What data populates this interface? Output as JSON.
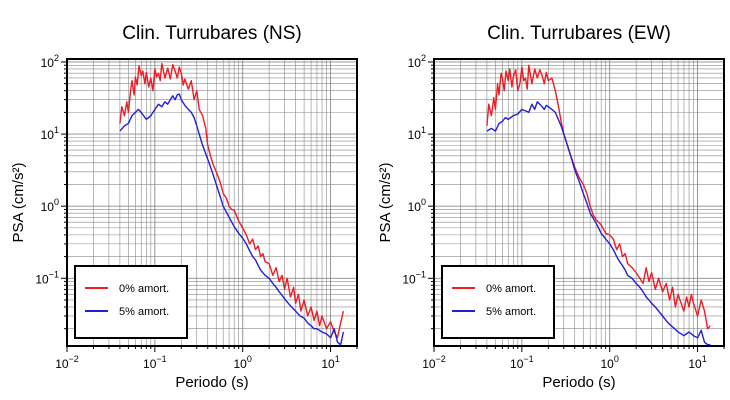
{
  "colors": {
    "undamped": "#ee1c24",
    "damped": "#1f1fdc",
    "grid": "#8a8a8a",
    "frame": "#000000"
  },
  "chart_data": [
    {
      "type": "line",
      "title": "Clin. Turrubares (NS)",
      "xlabel": "Periodo (s)",
      "ylabel": "PSA (cm/s²)",
      "xscale": "log",
      "yscale": "log",
      "xlim": [
        0.01,
        20
      ],
      "ylim": [
        0.0115,
        110
      ],
      "grid": true,
      "legend_position": "bottom-left",
      "x_ticks": [
        {
          "base": "10",
          "exp": "−2"
        },
        {
          "base": "10",
          "exp": "−1"
        },
        {
          "base": "10",
          "exp": "0"
        },
        {
          "base": "10",
          "exp": "1"
        }
      ],
      "y_ticks": [
        {
          "base": "10",
          "exp": "−1"
        },
        {
          "base": "10",
          "exp": "0"
        },
        {
          "base": "10",
          "exp": "1"
        },
        {
          "base": "10",
          "exp": "2"
        }
      ],
      "series": [
        {
          "name": "0% amort.",
          "color": "#ee1c24",
          "x": [
            0.04,
            0.042,
            0.045,
            0.048,
            0.05,
            0.053,
            0.055,
            0.058,
            0.06,
            0.063,
            0.066,
            0.07,
            0.073,
            0.077,
            0.08,
            0.085,
            0.09,
            0.095,
            0.1,
            0.105,
            0.11,
            0.115,
            0.12,
            0.13,
            0.14,
            0.15,
            0.16,
            0.17,
            0.18,
            0.19,
            0.2,
            0.21,
            0.22,
            0.24,
            0.26,
            0.28,
            0.3,
            0.32,
            0.35,
            0.38,
            0.4,
            0.43,
            0.46,
            0.5,
            0.55,
            0.6,
            0.65,
            0.7,
            0.75,
            0.8,
            0.9,
            1.0,
            1.1,
            1.2,
            1.3,
            1.4,
            1.5,
            1.6,
            1.7,
            1.8,
            2.0,
            2.2,
            2.4,
            2.6,
            2.8,
            3.0,
            3.2,
            3.5,
            3.8,
            4.0,
            4.3,
            4.6,
            5.0,
            5.5,
            6.0,
            6.5,
            7.0,
            7.5,
            8.0,
            9.0,
            10.0,
            11.0,
            12.0,
            13.0,
            14.0
          ],
          "y": [
            14,
            24,
            18,
            28,
            20,
            40,
            55,
            35,
            62,
            48,
            88,
            65,
            75,
            50,
            72,
            45,
            60,
            40,
            80,
            62,
            70,
            55,
            95,
            60,
            82,
            58,
            92,
            75,
            60,
            85,
            70,
            48,
            58,
            42,
            55,
            30,
            40,
            22,
            18,
            12,
            7,
            5,
            3.8,
            3.0,
            2.2,
            1.5,
            1.3,
            1.0,
            0.9,
            0.88,
            0.62,
            0.5,
            0.4,
            0.3,
            0.35,
            0.25,
            0.28,
            0.2,
            0.22,
            0.17,
            0.16,
            0.11,
            0.14,
            0.09,
            0.11,
            0.07,
            0.1,
            0.055,
            0.075,
            0.045,
            0.06,
            0.035,
            0.05,
            0.03,
            0.04,
            0.026,
            0.035,
            0.022,
            0.03,
            0.02,
            0.025,
            0.018,
            0.015,
            0.024,
            0.035
          ]
        },
        {
          "name": "5% amort.",
          "color": "#1f1fdc",
          "x": [
            0.04,
            0.045,
            0.05,
            0.055,
            0.06,
            0.065,
            0.07,
            0.08,
            0.09,
            0.1,
            0.11,
            0.12,
            0.13,
            0.14,
            0.15,
            0.16,
            0.17,
            0.18,
            0.19,
            0.2,
            0.22,
            0.24,
            0.26,
            0.28,
            0.3,
            0.32,
            0.35,
            0.4,
            0.45,
            0.5,
            0.55,
            0.6,
            0.7,
            0.8,
            0.9,
            1.0,
            1.1,
            1.2,
            1.3,
            1.4,
            1.5,
            1.6,
            1.8,
            2.0,
            2.2,
            2.4,
            2.6,
            2.8,
            3.0,
            3.3,
            3.6,
            4.0,
            4.5,
            5.0,
            5.5,
            6.0,
            6.5,
            7.0,
            8.0,
            9.0,
            10.0,
            11.0,
            12.0,
            13.0,
            14.0
          ],
          "y": [
            11,
            13,
            14,
            18,
            20,
            22,
            20,
            16,
            18,
            22,
            26,
            24,
            28,
            26,
            30,
            34,
            30,
            35,
            36,
            30,
            25,
            22,
            20,
            17,
            13,
            10,
            7,
            4.5,
            3.0,
            2.0,
            1.4,
            1.0,
            0.7,
            0.52,
            0.42,
            0.36,
            0.3,
            0.24,
            0.2,
            0.18,
            0.15,
            0.13,
            0.11,
            0.1,
            0.085,
            0.075,
            0.065,
            0.058,
            0.052,
            0.045,
            0.04,
            0.035,
            0.03,
            0.028,
            0.024,
            0.022,
            0.02,
            0.02,
            0.018,
            0.017,
            0.015,
            0.02,
            0.013,
            0.012,
            0.018
          ]
        }
      ]
    },
    {
      "type": "line",
      "title": "Clin. Turrubares (EW)",
      "xlabel": "Periodo (s)",
      "ylabel": "PSA (cm/s²)",
      "xscale": "log",
      "yscale": "log",
      "xlim": [
        0.01,
        20
      ],
      "ylim": [
        0.0115,
        110
      ],
      "grid": true,
      "legend_position": "bottom-left",
      "x_ticks": [
        {
          "base": "10",
          "exp": "−2"
        },
        {
          "base": "10",
          "exp": "−1"
        },
        {
          "base": "10",
          "exp": "0"
        },
        {
          "base": "10",
          "exp": "1"
        }
      ],
      "y_ticks": [
        {
          "base": "10",
          "exp": "−1"
        },
        {
          "base": "10",
          "exp": "0"
        },
        {
          "base": "10",
          "exp": "1"
        },
        {
          "base": "10",
          "exp": "2"
        }
      ],
      "series": [
        {
          "name": "0% amort.",
          "color": "#ee1c24",
          "x": [
            0.04,
            0.042,
            0.045,
            0.048,
            0.05,
            0.053,
            0.055,
            0.058,
            0.06,
            0.063,
            0.066,
            0.07,
            0.073,
            0.077,
            0.08,
            0.085,
            0.09,
            0.095,
            0.1,
            0.105,
            0.11,
            0.115,
            0.12,
            0.13,
            0.14,
            0.15,
            0.16,
            0.17,
            0.18,
            0.19,
            0.2,
            0.22,
            0.24,
            0.26,
            0.28,
            0.3,
            0.33,
            0.36,
            0.4,
            0.45,
            0.5,
            0.55,
            0.6,
            0.65,
            0.7,
            0.8,
            0.9,
            1.0,
            1.1,
            1.2,
            1.3,
            1.4,
            1.5,
            1.6,
            1.8,
            2.0,
            2.2,
            2.4,
            2.6,
            2.8,
            3.0,
            3.3,
            3.6,
            4.0,
            4.4,
            4.8,
            5.2,
            5.6,
            6.0,
            6.5,
            7.0,
            7.5,
            8.0,
            8.5,
            9.0,
            10.0,
            11.0,
            12.0,
            13.0,
            14.0
          ],
          "y": [
            13,
            26,
            18,
            32,
            22,
            50,
            35,
            70,
            60,
            40,
            75,
            55,
            80,
            45,
            62,
            78,
            40,
            50,
            85,
            55,
            60,
            42,
            90,
            50,
            80,
            60,
            78,
            65,
            50,
            72,
            55,
            60,
            40,
            25,
            15,
            10,
            7,
            5,
            3.5,
            2.5,
            2.0,
            1.5,
            1.0,
            0.75,
            0.65,
            0.55,
            0.42,
            0.4,
            0.35,
            0.25,
            0.3,
            0.2,
            0.22,
            0.16,
            0.14,
            0.12,
            0.1,
            0.085,
            0.14,
            0.09,
            0.12,
            0.07,
            0.1,
            0.065,
            0.085,
            0.05,
            0.075,
            0.04,
            0.06,
            0.045,
            0.035,
            0.055,
            0.04,
            0.06,
            0.045,
            0.03,
            0.05,
            0.035,
            0.02,
            0.022
          ]
        },
        {
          "name": "5% amort.",
          "color": "#1f1fdc",
          "x": [
            0.04,
            0.045,
            0.05,
            0.055,
            0.06,
            0.065,
            0.07,
            0.08,
            0.09,
            0.1,
            0.11,
            0.12,
            0.13,
            0.14,
            0.15,
            0.16,
            0.17,
            0.18,
            0.19,
            0.2,
            0.22,
            0.24,
            0.26,
            0.28,
            0.3,
            0.33,
            0.36,
            0.4,
            0.45,
            0.5,
            0.55,
            0.6,
            0.7,
            0.8,
            0.9,
            1.0,
            1.1,
            1.2,
            1.3,
            1.4,
            1.5,
            1.6,
            1.8,
            2.0,
            2.2,
            2.4,
            2.6,
            2.8,
            3.0,
            3.3,
            3.6,
            4.0,
            4.5,
            5.0,
            5.5,
            6.0,
            6.5,
            7.0,
            8.0,
            9.0,
            10.0,
            11.0,
            12.0,
            13.0,
            14.0
          ],
          "y": [
            11,
            12,
            11,
            14,
            15,
            17,
            16,
            18,
            19,
            22,
            21,
            20,
            26,
            22,
            28,
            26,
            24,
            22,
            25,
            24,
            22,
            20,
            16,
            13,
            10,
            7,
            5,
            3.2,
            2.2,
            1.5,
            1.1,
            0.8,
            0.58,
            0.42,
            0.35,
            0.3,
            0.25,
            0.2,
            0.17,
            0.15,
            0.13,
            0.11,
            0.1,
            0.085,
            0.075,
            0.065,
            0.055,
            0.05,
            0.045,
            0.04,
            0.035,
            0.03,
            0.025,
            0.022,
            0.02,
            0.018,
            0.017,
            0.016,
            0.018,
            0.016,
            0.015,
            0.019,
            0.013,
            0.012,
            0.012
          ]
        }
      ]
    }
  ]
}
